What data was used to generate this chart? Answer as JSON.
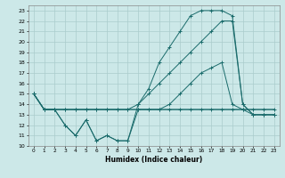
{
  "xlabel": "Humidex (Indice chaleur)",
  "background_color": "#cce8e8",
  "grid_color": "#aacccc",
  "line_color": "#1a6b6b",
  "xlim": [
    -0.5,
    23.5
  ],
  "ylim": [
    10,
    23.5
  ],
  "xticks": [
    0,
    1,
    2,
    3,
    4,
    5,
    6,
    7,
    8,
    9,
    10,
    11,
    12,
    13,
    14,
    15,
    16,
    17,
    18,
    19,
    20,
    21,
    22,
    23
  ],
  "yticks": [
    10,
    11,
    12,
    13,
    14,
    15,
    16,
    17,
    18,
    19,
    20,
    21,
    22,
    23
  ],
  "series": [
    {
      "x": [
        0,
        1,
        2,
        3,
        4,
        5,
        6,
        7,
        8,
        9,
        10,
        11,
        12,
        13,
        14,
        15,
        16,
        17,
        18,
        19,
        20,
        21,
        22,
        23
      ],
      "y": [
        15,
        13.5,
        13.5,
        13.5,
        13.5,
        13.5,
        13.5,
        13.5,
        13.5,
        13.5,
        13.5,
        13.5,
        13.5,
        13.5,
        13.5,
        13.5,
        13.5,
        13.5,
        13.5,
        13.5,
        13.5,
        13.5,
        13.5,
        13.5
      ],
      "marker": false,
      "linestyle": "-"
    },
    {
      "x": [
        0,
        1,
        2,
        3,
        4,
        5,
        6,
        7,
        8,
        9,
        10,
        11,
        12,
        13,
        14,
        15,
        16,
        17,
        18,
        19,
        20,
        21,
        22,
        23
      ],
      "y": [
        15,
        13.5,
        13.5,
        12,
        11,
        12.5,
        10.5,
        11,
        10.5,
        10.5,
        13.5,
        13.5,
        13.5,
        13.5,
        13.5,
        13.5,
        13.5,
        13.5,
        13.5,
        13.5,
        13.5,
        13.5,
        13.5,
        13.5
      ],
      "marker": true,
      "linestyle": "-"
    },
    {
      "x": [
        0,
        1,
        2,
        3,
        4,
        5,
        6,
        7,
        8,
        9,
        10,
        11,
        12,
        13,
        14,
        15,
        16,
        17,
        18,
        19,
        20,
        21,
        22,
        23
      ],
      "y": [
        15,
        13.5,
        13.5,
        13.5,
        13.5,
        13.5,
        13.5,
        13.5,
        13.5,
        13.5,
        14,
        15,
        16,
        17,
        18,
        19,
        20,
        21,
        22,
        22,
        14,
        13,
        13,
        13
      ],
      "marker": true,
      "linestyle": "-"
    },
    {
      "x": [
        0,
        1,
        2,
        3,
        4,
        5,
        6,
        7,
        8,
        9,
        10,
        11,
        12,
        13,
        14,
        15,
        16,
        17,
        18,
        19,
        20,
        21,
        22,
        23
      ],
      "y": [
        15,
        13.5,
        13.5,
        12,
        11,
        12.5,
        10.5,
        11,
        10.5,
        10.5,
        14,
        15.5,
        18,
        19.5,
        21,
        22.5,
        23,
        23,
        23,
        22.5,
        14,
        13,
        13,
        13
      ],
      "marker": true,
      "linestyle": "-"
    },
    {
      "x": [
        0,
        1,
        2,
        3,
        4,
        5,
        6,
        7,
        8,
        9,
        10,
        11,
        12,
        13,
        14,
        15,
        16,
        17,
        18,
        19,
        20,
        21,
        22,
        23
      ],
      "y": [
        15,
        13.5,
        13.5,
        13.5,
        13.5,
        13.5,
        13.5,
        13.5,
        13.5,
        13.5,
        13.5,
        13.5,
        13.5,
        14,
        15,
        16,
        17,
        17.5,
        18,
        14,
        13.5,
        13,
        13,
        13
      ],
      "marker": true,
      "linestyle": "-"
    }
  ]
}
